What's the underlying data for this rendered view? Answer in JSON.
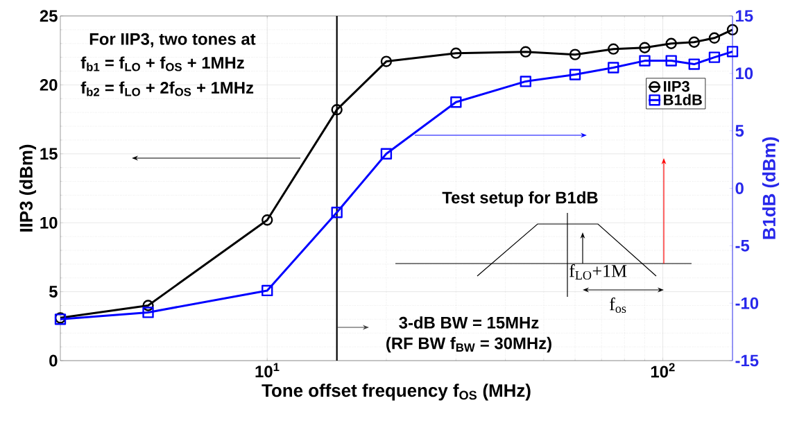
{
  "chart_data": {
    "type": "line",
    "xlabel": "Tone offset frequency f$_{OS}$ (MHz)",
    "ylabel": "IIP3 (dBm)",
    "y2label": "B1dB (dBm)",
    "x": [
      3,
      5,
      10,
      15,
      20,
      30,
      45,
      60,
      75,
      90,
      105,
      120,
      135,
      150
    ],
    "series": [
      {
        "name": "IIP3",
        "color": "#000000",
        "marker": "circle",
        "values": [
          3.1,
          4.0,
          10.2,
          18.2,
          21.7,
          22.3,
          22.4,
          22.2,
          22.6,
          22.7,
          23.0,
          23.1,
          23.4,
          24.0
        ]
      },
      {
        "name": "B1dB",
        "color": "#0000ff",
        "marker": "square",
        "axis": "y2",
        "values": [
          -11.4,
          -10.8,
          -8.9,
          -2.1,
          3.0,
          7.5,
          9.3,
          9.9,
          10.5,
          11.1,
          11.1,
          10.8,
          11.4,
          11.9
        ]
      }
    ],
    "log": "x",
    "xlim": [
      3,
      150
    ],
    "xticks": [
      {
        "value": 10,
        "label": "10$^{1}$"
      },
      {
        "value": 100,
        "label": "10$^{2}$"
      }
    ],
    "ylim": [
      0,
      25
    ],
    "yticks": [
      0,
      5,
      10,
      15,
      20,
      25
    ],
    "y2lim": [
      -15,
      15
    ],
    "y2ticks": [
      -15,
      -10,
      -5,
      0,
      5,
      10,
      15
    ],
    "grid": true,
    "legend": "right",
    "line_style": "solid",
    "ref_lines": [
      {
        "axis": "x",
        "value": 15,
        "color": "#000000"
      }
    ],
    "annotations": [
      "For IIP3, two tones at",
      "f$_{b1}$ = f$_{LO}$ + f$_{OS}$ + 1MHz",
      "f$_{b2}$ = f$_{LO}$ + 2f$_{OS}$ + 1MHz",
      "3-dB BW = 15MHz",
      "(RF BW f$_{BW}$ = 30MHz)",
      "Test setup for B1dB",
      "f$_{LO}$+1M",
      "f$_{os}$"
    ]
  }
}
